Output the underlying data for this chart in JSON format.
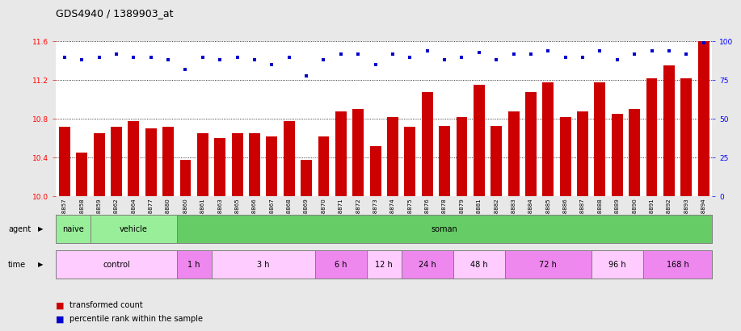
{
  "title": "GDS4940 / 1389903_at",
  "samples": [
    "GSM338857",
    "GSM338858",
    "GSM338859",
    "GSM338862",
    "GSM338864",
    "GSM338877",
    "GSM338880",
    "GSM338860",
    "GSM338861",
    "GSM338863",
    "GSM338865",
    "GSM338866",
    "GSM338867",
    "GSM338868",
    "GSM338869",
    "GSM338870",
    "GSM338871",
    "GSM338872",
    "GSM338873",
    "GSM338874",
    "GSM338875",
    "GSM338876",
    "GSM338878",
    "GSM338879",
    "GSM338881",
    "GSM338882",
    "GSM338883",
    "GSM338884",
    "GSM338885",
    "GSM338886",
    "GSM338887",
    "GSM338888",
    "GSM338889",
    "GSM338890",
    "GSM338891",
    "GSM338892",
    "GSM338893",
    "GSM338894"
  ],
  "bar_values": [
    10.72,
    10.45,
    10.65,
    10.72,
    10.78,
    10.7,
    10.72,
    10.38,
    10.65,
    10.6,
    10.65,
    10.65,
    10.62,
    10.78,
    10.38,
    10.62,
    10.88,
    10.9,
    10.52,
    10.82,
    10.72,
    11.08,
    10.73,
    10.82,
    11.15,
    10.73,
    10.88,
    11.08,
    11.18,
    10.82,
    10.88,
    11.18,
    10.85,
    10.9,
    11.22,
    11.35,
    11.22,
    11.62
  ],
  "percentile_values": [
    90,
    88,
    90,
    92,
    90,
    90,
    88,
    82,
    90,
    88,
    90,
    88,
    85,
    90,
    78,
    88,
    92,
    92,
    85,
    92,
    90,
    94,
    88,
    90,
    93,
    88,
    92,
    92,
    94,
    90,
    90,
    94,
    88,
    92,
    94,
    94,
    92,
    99
  ],
  "bar_color": "#cc0000",
  "percentile_color": "#0000cc",
  "ylim_left": [
    10.0,
    11.6
  ],
  "ylim_right": [
    0,
    100
  ],
  "yticks_left": [
    10.0,
    10.4,
    10.8,
    11.2,
    11.6
  ],
  "yticks_right": [
    0,
    25,
    50,
    75,
    100
  ],
  "agent_groups": [
    {
      "label": "naive",
      "start": 0,
      "end": 2,
      "color": "#99ee99"
    },
    {
      "label": "vehicle",
      "start": 2,
      "end": 7,
      "color": "#99ee99"
    },
    {
      "label": "soman",
      "start": 7,
      "end": 38,
      "color": "#66cc66"
    }
  ],
  "agent_dividers": [
    2,
    7
  ],
  "time_groups": [
    {
      "label": "control",
      "start": 0,
      "end": 7,
      "color": "#ffccff"
    },
    {
      "label": "1 h",
      "start": 7,
      "end": 9,
      "color": "#ee88ee"
    },
    {
      "label": "3 h",
      "start": 9,
      "end": 15,
      "color": "#ffccff"
    },
    {
      "label": "6 h",
      "start": 15,
      "end": 18,
      "color": "#ee88ee"
    },
    {
      "label": "12 h",
      "start": 18,
      "end": 20,
      "color": "#ffccff"
    },
    {
      "label": "24 h",
      "start": 20,
      "end": 23,
      "color": "#ee88ee"
    },
    {
      "label": "48 h",
      "start": 23,
      "end": 26,
      "color": "#ffccff"
    },
    {
      "label": "72 h",
      "start": 26,
      "end": 31,
      "color": "#ee88ee"
    },
    {
      "label": "96 h",
      "start": 31,
      "end": 34,
      "color": "#ffccff"
    },
    {
      "label": "168 h",
      "start": 34,
      "end": 38,
      "color": "#ee88ee"
    }
  ],
  "bg_color": "#e8e8e8",
  "plot_bg_color": "#ffffff",
  "label_fontsize": 7,
  "tick_fontsize": 6.5,
  "title_fontsize": 9
}
